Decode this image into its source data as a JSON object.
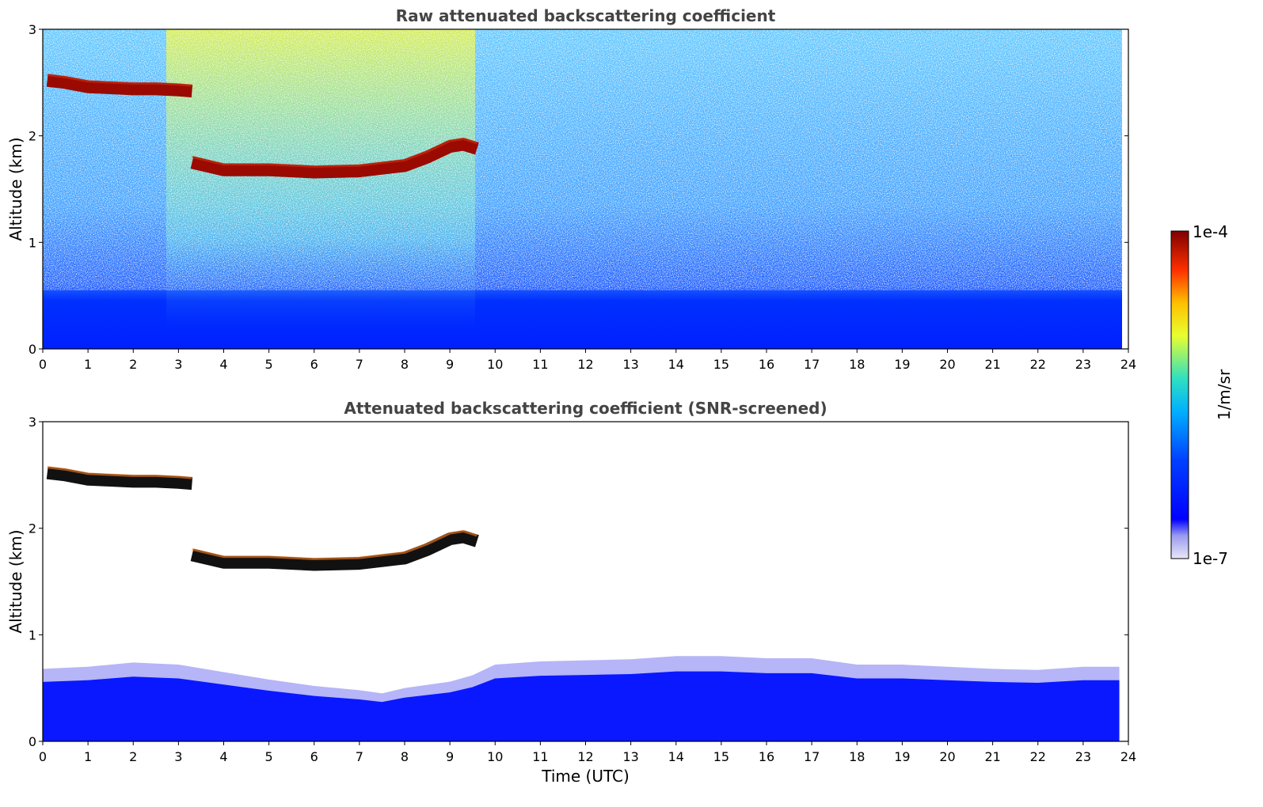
{
  "chart_data": [
    {
      "type": "heatmap",
      "title": "Raw attenuated backscattering coefficient",
      "ylabel": "Altitude (km)",
      "xlabel": "",
      "xlim": [
        0,
        24
      ],
      "ylim": [
        0,
        3
      ],
      "xticks": [
        "0",
        "1",
        "2",
        "3",
        "4",
        "5",
        "6",
        "7",
        "8",
        "9",
        "10",
        "11",
        "12",
        "13",
        "14",
        "15",
        "16",
        "17",
        "18",
        "19",
        "20",
        "21",
        "22",
        "23",
        "24"
      ],
      "yticks": [
        "0",
        "1",
        "2",
        "3"
      ],
      "colorscale": "log",
      "layers": {
        "boundary_layer_top_km": 0.65,
        "noise": "high",
        "sunlit_hours": [
          2.5,
          9.5
        ]
      },
      "cloud_layers": [
        {
          "t": [
            0.1,
            0.5,
            1.0,
            1.5,
            2.0,
            2.5,
            3.0,
            3.3
          ],
          "alt": [
            2.52,
            2.5,
            2.46,
            2.45,
            2.44,
            2.44,
            2.43,
            2.42
          ]
        },
        {
          "t": [
            3.3,
            4.0,
            5.0,
            6.0,
            7.0,
            8.0,
            8.5,
            9.0,
            9.3,
            9.6
          ],
          "alt": [
            1.75,
            1.68,
            1.68,
            1.66,
            1.67,
            1.72,
            1.8,
            1.9,
            1.92,
            1.88
          ]
        }
      ]
    },
    {
      "type": "heatmap",
      "title": "Attenuated backscattering coefficient (SNR-screened)",
      "ylabel": "Altitude (km)",
      "xlabel": "Time (UTC)",
      "xlim": [
        0,
        24
      ],
      "ylim": [
        0,
        3
      ],
      "xticks": [
        "0",
        "1",
        "2",
        "3",
        "4",
        "5",
        "6",
        "7",
        "8",
        "9",
        "10",
        "11",
        "12",
        "13",
        "14",
        "15",
        "16",
        "17",
        "18",
        "19",
        "20",
        "21",
        "22",
        "23",
        "24"
      ],
      "yticks": [
        "0",
        "1",
        "2",
        "3"
      ],
      "colorscale": "log",
      "boundary_layer_top": {
        "t": [
          0,
          1,
          2,
          3,
          4,
          5,
          6,
          7,
          7.5,
          8,
          9,
          9.5,
          10,
          11,
          12,
          13,
          14,
          15,
          16,
          17,
          18,
          19,
          20,
          21,
          22,
          23,
          23.8
        ],
        "alt": [
          0.68,
          0.7,
          0.74,
          0.72,
          0.65,
          0.58,
          0.52,
          0.48,
          0.45,
          0.5,
          0.56,
          0.62,
          0.72,
          0.75,
          0.76,
          0.77,
          0.8,
          0.8,
          0.78,
          0.78,
          0.72,
          0.72,
          0.7,
          0.68,
          0.67,
          0.7,
          0.7
        ]
      },
      "cloud_layers": [
        {
          "t": [
            0.1,
            0.5,
            1.0,
            1.5,
            2.0,
            2.5,
            3.0,
            3.3
          ],
          "alt": [
            2.52,
            2.5,
            2.46,
            2.45,
            2.44,
            2.44,
            2.43,
            2.42
          ]
        },
        {
          "t": [
            3.3,
            4.0,
            5.0,
            6.0,
            7.0,
            8.0,
            8.5,
            9.0,
            9.3,
            9.6
          ],
          "alt": [
            1.75,
            1.68,
            1.68,
            1.66,
            1.67,
            1.72,
            1.8,
            1.9,
            1.92,
            1.88
          ]
        }
      ]
    }
  ],
  "colorbar": {
    "max_label": "1e-4",
    "min_label": "1e-7",
    "unit_label": "1/m/sr"
  }
}
